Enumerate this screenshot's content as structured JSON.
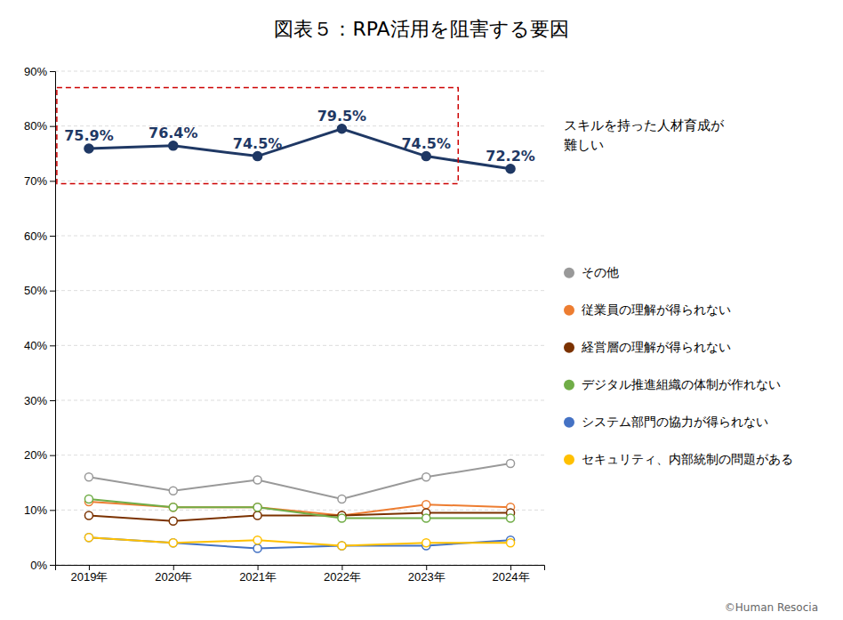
{
  "chart_data": {
    "type": "line",
    "title": "図表５：RPA活用を阻害する要因",
    "categories": [
      "2019年",
      "2020年",
      "2021年",
      "2022年",
      "2023年",
      "2024年"
    ],
    "series": [
      {
        "name": "その他",
        "color": "#999999",
        "marker": "circle-open",
        "values": [
          16.0,
          13.5,
          15.5,
          12.0,
          16.0,
          18.5
        ]
      },
      {
        "name": "従業員の理解が得られない",
        "color": "#ed7d31",
        "marker": "circle-open",
        "values": [
          11.5,
          10.5,
          10.5,
          9.0,
          11.0,
          10.5
        ]
      },
      {
        "name": "経営層の理解が得られない",
        "color": "#7b3200",
        "marker": "circle-open",
        "values": [
          9.0,
          8.0,
          9.0,
          9.0,
          9.5,
          9.5
        ]
      },
      {
        "name": "デジタル推進組織の体制が作れない",
        "color": "#70ad47",
        "marker": "circle-open",
        "values": [
          12.0,
          10.5,
          10.5,
          8.5,
          8.5,
          8.5
        ]
      },
      {
        "name": "システム部門の協力が得られない",
        "color": "#4472c4",
        "marker": "circle-open",
        "values": [
          5.0,
          4.0,
          3.0,
          3.5,
          3.5,
          4.5
        ]
      },
      {
        "name": "セキュリティ、内部統制の問題がある",
        "color": "#ffc000",
        "marker": "circle-open",
        "values": [
          5.0,
          4.0,
          4.5,
          3.5,
          4.0,
          4.0
        ]
      },
      {
        "color": "#1f3864",
        "marker": "circle",
        "data_labels": true,
        "values": [
          75.9,
          76.4,
          74.5,
          79.5,
          74.5,
          72.2
        ],
        "value_labels": [
          "75.9%",
          "76.4%",
          "74.5%",
          "79.5%",
          "74.5%",
          "72.2%"
        ]
      }
    ],
    "ylim": [
      0,
      90
    ],
    "yticks": [
      {
        "value": 0,
        "label": "0%"
      },
      {
        "value": 10,
        "label": "10%"
      },
      {
        "value": 20,
        "label": "20%"
      },
      {
        "value": 30,
        "label": "30%"
      },
      {
        "value": 40,
        "label": "40%"
      },
      {
        "value": 50,
        "label": "50%"
      },
      {
        "value": 60,
        "label": "60%"
      },
      {
        "value": 70,
        "label": "70%"
      },
      {
        "value": 80,
        "label": "80%"
      },
      {
        "value": 90,
        "label": "90%"
      }
    ],
    "grid": true,
    "annotations": [
      {
        "text": "スキルを持った人材育成が\n難しい",
        "ylim": [
          69.5,
          87.0
        ],
        "x_range": [
          "2019年",
          "2023年"
        ],
        "color": "#cc0000"
      }
    ],
    "caption": "©Human Resocia"
  }
}
